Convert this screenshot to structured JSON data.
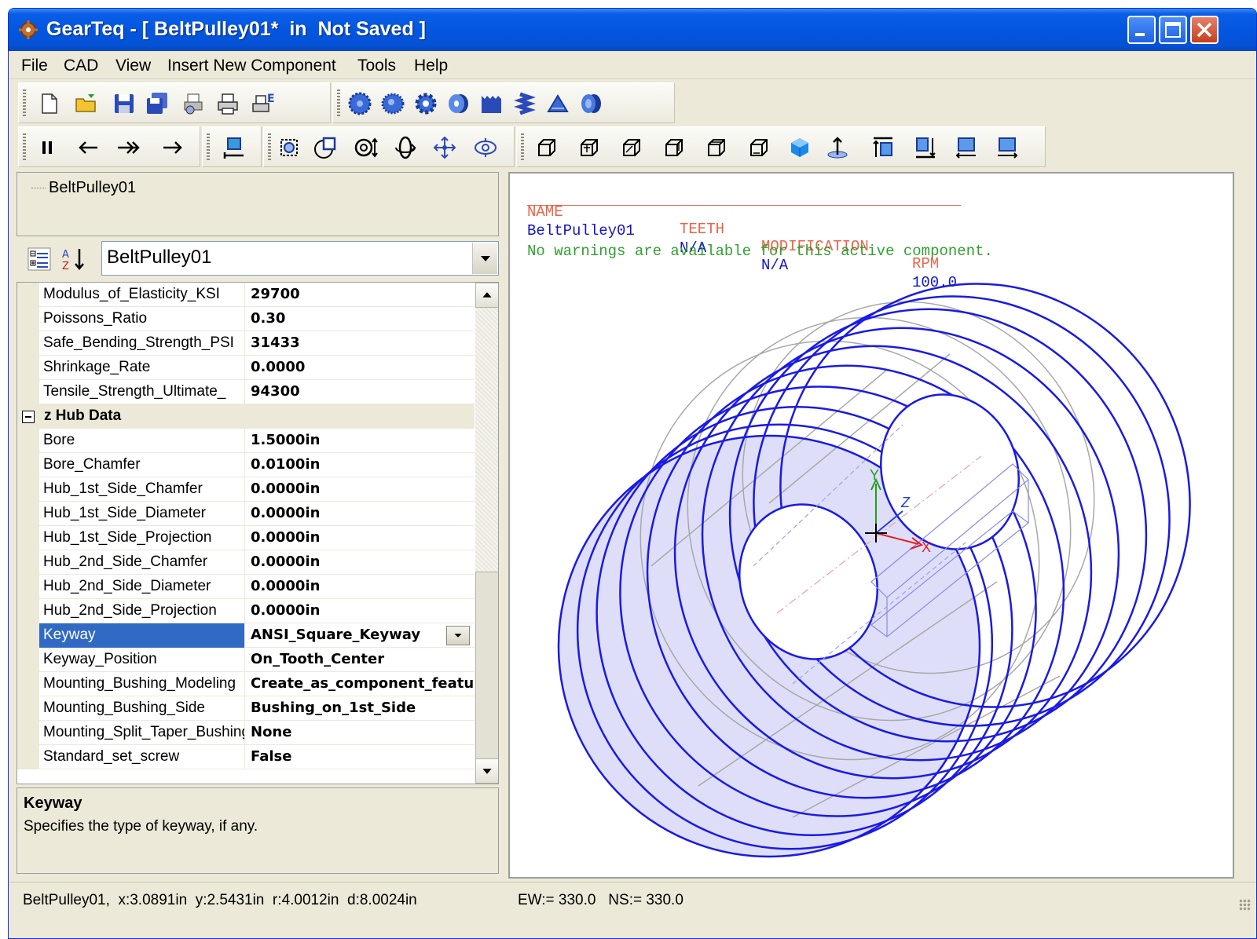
{
  "window": {
    "title": "GearTeq - [ BeltPulley01*  in  Not Saved ]"
  },
  "menu": [
    "File",
    "CAD",
    "View",
    "Insert New Component",
    "Tools",
    "Help"
  ],
  "toolbar1": [
    "new-file-icon",
    "open-folder-icon",
    "save-icon",
    "save-all-icon",
    "print-preview-icon",
    "print-icon",
    "print-e-icon",
    "spur-gear-icon",
    "helical-gear-icon",
    "sprocket-icon",
    "pulley-icon",
    "rack-icon",
    "worm-icon",
    "bevel-gear-icon",
    "belt-pulley-icon"
  ],
  "toolbar2": [
    "pause-icon",
    "step-back-icon",
    "fast-forward-icon",
    "step-forward-icon",
    "fit-view-icon",
    "zoom-window-icon",
    "zoom-region-icon",
    "zoom-in-out-icon",
    "rotate-icon",
    "pan-icon",
    "orbit-icon",
    "view-front-icon",
    "view-back-icon",
    "view-left-icon",
    "view-right-icon",
    "view-top-icon",
    "view-bottom-icon",
    "view-iso-icon",
    "view-normal-icon",
    "align-top-icon",
    "align-bottom-icon",
    "align-left-icon",
    "align-right-icon"
  ],
  "tree": {
    "item": "BeltPulley01"
  },
  "property_combo": {
    "value": "BeltPulley01"
  },
  "properties": [
    {
      "name": "Modulus_of_Elasticity_KSI",
      "value": "29700"
    },
    {
      "name": "Poissons_Ratio",
      "value": "0.30"
    },
    {
      "name": "Safe_Bending_Strength_PSI",
      "value": "31433"
    },
    {
      "name": "Shrinkage_Rate",
      "value": "0.0000"
    },
    {
      "name": "Tensile_Strength_Ultimate_",
      "value": "94300"
    },
    {
      "category": "z Hub Data"
    },
    {
      "name": "Bore",
      "value": "1.5000in"
    },
    {
      "name": "Bore_Chamfer",
      "value": "0.0100in"
    },
    {
      "name": "Hub_1st_Side_Chamfer",
      "value": "0.0000in"
    },
    {
      "name": "Hub_1st_Side_Diameter",
      "value": "0.0000in"
    },
    {
      "name": "Hub_1st_Side_Projection",
      "value": "0.0000in"
    },
    {
      "name": "Hub_2nd_Side_Chamfer",
      "value": "0.0000in"
    },
    {
      "name": "Hub_2nd_Side_Diameter",
      "value": "0.0000in"
    },
    {
      "name": "Hub_2nd_Side_Projection",
      "value": "0.0000in"
    },
    {
      "name": "Keyway",
      "value": "ANSI_Square_Keyway",
      "selected": true
    },
    {
      "name": "Keyway_Position",
      "value": "On_Tooth_Center"
    },
    {
      "name": "Mounting_Bushing_Modeling",
      "value": "Create_as_component_feature"
    },
    {
      "name": "Mounting_Bushing_Side",
      "value": "Bushing_on_1st_Side"
    },
    {
      "name": "Mounting_Split_Taper_Bushing",
      "value": "None"
    },
    {
      "name": "Standard_set_screw",
      "value": "False"
    }
  ],
  "help": {
    "title": "Keyway",
    "description": "Specifies the type of keyway, if any."
  },
  "viewport": {
    "table_header": [
      "NAME",
      "TEETH",
      "MODIFICATION",
      "RPM"
    ],
    "table_row": [
      "BeltPulley01",
      "N/A",
      "N/A",
      "100.0"
    ],
    "warning": "No warnings are available for this active component.",
    "axis_labels": {
      "x": "X",
      "y": "Y",
      "z": "Z"
    },
    "colors": {
      "header": "#e8644a",
      "row": "#1414c8",
      "warning": "#30a030",
      "outline": "#1a1ae6",
      "hidden_line": "#a8a8a8",
      "fill": "#d8d8f8"
    }
  },
  "status": {
    "main": "BeltPulley01,  x:3.0891in  y:2.5431in  r:4.0012in  d:8.0024in",
    "ew_ns": "EW:= 330.0   NS:= 330.0"
  }
}
